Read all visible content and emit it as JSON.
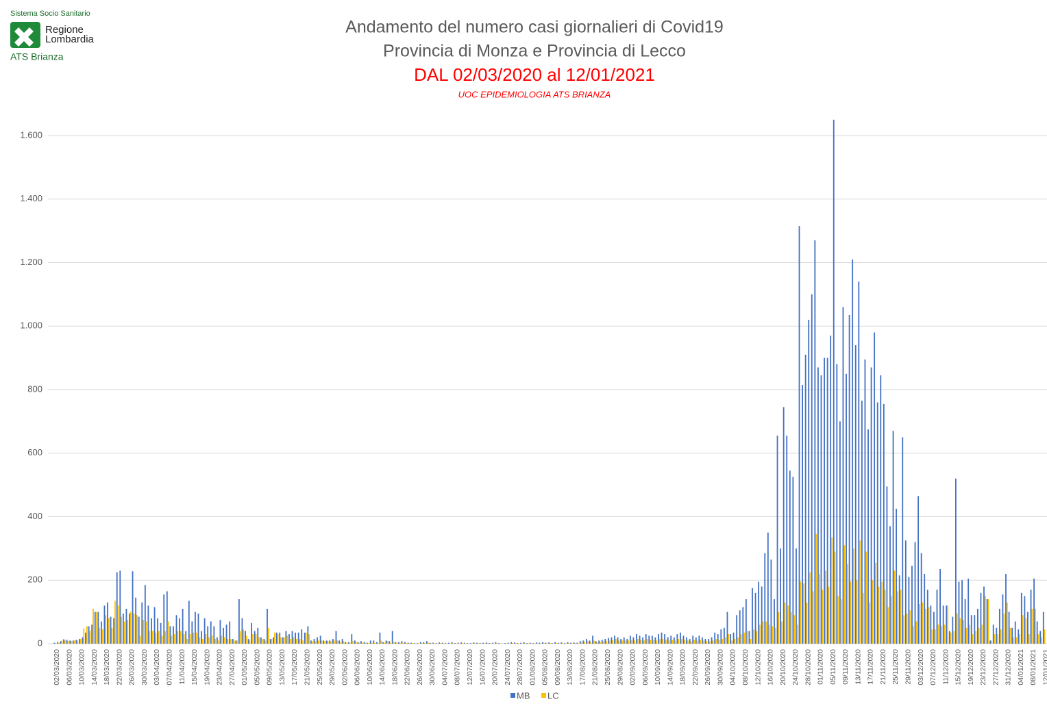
{
  "logo": {
    "system": "Sistema Socio Sanitario",
    "region": [
      "Regione",
      "Lombardia"
    ],
    "agency": "ATS Brianza"
  },
  "chart_data": {
    "type": "bar",
    "title": "Andamento del numero casi giornalieri di Covid19",
    "subtitle": "Provincia di Monza e Provincia di Lecco",
    "annotations": [
      "DAL 02/03/2020 al 12/01/2021",
      "UOC EPIDEMIOLOGIA ATS BRIANZA"
    ],
    "ylim": [
      0,
      1600
    ],
    "yticks": [
      0,
      200,
      400,
      600,
      800,
      {
        "value": 1000,
        "label": "1.000"
      },
      {
        "value": 1200,
        "label": "1.200"
      },
      {
        "value": 1400,
        "label": "1.400"
      },
      {
        "value": 1600,
        "label": "1.600"
      }
    ],
    "grid": true,
    "legend": "bottom",
    "categories": [
      "02/03/2020",
      null,
      null,
      null,
      "06/03/2020",
      null,
      null,
      null,
      "10/03/2020",
      null,
      null,
      null,
      "14/03/2020",
      null,
      null,
      null,
      "18/03/2020",
      null,
      null,
      null,
      "22/03/2020",
      null,
      null,
      null,
      "26/03/2020",
      null,
      null,
      null,
      "30/03/2020",
      null,
      null,
      null,
      "03/04/2020",
      null,
      null,
      null,
      "07/04/2020",
      null,
      null,
      null,
      "11/04/2020",
      null,
      null,
      null,
      "15/04/2020",
      null,
      null,
      null,
      "19/04/2020",
      null,
      null,
      null,
      "23/04/2020",
      null,
      null,
      null,
      "27/04/2020",
      null,
      null,
      null,
      "01/05/2020",
      null,
      null,
      null,
      "05/05/2020",
      null,
      null,
      null,
      "09/05/2020",
      null,
      null,
      null,
      "13/05/2020",
      null,
      null,
      null,
      "17/05/2020",
      null,
      null,
      null,
      "21/05/2020",
      null,
      null,
      null,
      "25/05/2020",
      null,
      null,
      null,
      "29/05/2020",
      null,
      null,
      null,
      "02/06/2020",
      null,
      null,
      null,
      "06/06/2020",
      null,
      null,
      null,
      "10/06/2020",
      null,
      null,
      null,
      "14/06/2020",
      null,
      null,
      null,
      "18/06/2020",
      null,
      null,
      null,
      "22/06/2020",
      null,
      null,
      null,
      "26/06/2020",
      null,
      null,
      null,
      "30/06/2020",
      null,
      null,
      null,
      "04/07/2020",
      null,
      null,
      null,
      "08/07/2020",
      null,
      null,
      null,
      "12/07/2020",
      null,
      null,
      null,
      "16/07/2020",
      null,
      null,
      null,
      "20/07/2020",
      null,
      null,
      null,
      "24/07/2020",
      null,
      null,
      null,
      "28/07/2020",
      null,
      null,
      null,
      "01/08/2020",
      null,
      null,
      null,
      "05/08/2020",
      null,
      null,
      null,
      "09/08/2020",
      null,
      null,
      null,
      "13/08/2020",
      null,
      null,
      null,
      "17/08/2020",
      null,
      null,
      null,
      "21/08/2020",
      null,
      null,
      null,
      "25/08/2020",
      null,
      null,
      null,
      "29/08/2020",
      null,
      null,
      null,
      "02/09/2020",
      null,
      null,
      null,
      "06/09/2020",
      null,
      null,
      null,
      "10/09/2020",
      null,
      null,
      null,
      "14/09/2020",
      null,
      null,
      null,
      "18/09/2020",
      null,
      null,
      null,
      "22/09/2020",
      null,
      null,
      null,
      "26/09/2020",
      null,
      null,
      null,
      "30/09/2020",
      null,
      null,
      null,
      "04/10/2020",
      null,
      null,
      null,
      "08/10/2020",
      null,
      null,
      null,
      "12/10/2020",
      null,
      null,
      null,
      "16/10/2020",
      null,
      null,
      null,
      "20/10/2020",
      null,
      null,
      null,
      "24/10/2020",
      null,
      null,
      null,
      "28/10/2020",
      null,
      null,
      null,
      "01/11/2020",
      null,
      null,
      null,
      "05/11/2020",
      null,
      null,
      null,
      "09/11/2020",
      null,
      null,
      null,
      "13/11/2020",
      null,
      null,
      null,
      "17/11/2020",
      null,
      null,
      null,
      "21/11/2020",
      null,
      null,
      null,
      "25/11/2020",
      null,
      null,
      null,
      "29/11/2020",
      null,
      null,
      null,
      "03/12/2020",
      null,
      null,
      null,
      "07/12/2020",
      null,
      null,
      null,
      "11/12/2020",
      null,
      null,
      null,
      "15/12/2020",
      null,
      null,
      null,
      "19/12/2020",
      null,
      null,
      null,
      "23/12/2020",
      null,
      null,
      null,
      "27/12/2020",
      null,
      null,
      null,
      "31/12/2020",
      null,
      null,
      null,
      "04/01/2021",
      null,
      null,
      null,
      "08/01/2021",
      null,
      null,
      null,
      "12/01/2021"
    ],
    "series": [
      {
        "name": "MB",
        "color": "#4472c4",
        "values": [
          3,
          5,
          8,
          14,
          12,
          10,
          10,
          12,
          15,
          20,
          35,
          55,
          60,
          100,
          100,
          70,
          120,
          130,
          85,
          80,
          225,
          230,
          95,
          110,
          95,
          228,
          145,
          85,
          130,
          185,
          120,
          80,
          115,
          80,
          65,
          155,
          165,
          55,
          55,
          90,
          80,
          110,
          40,
          135,
          70,
          100,
          95,
          40,
          80,
          55,
          70,
          55,
          20,
          75,
          50,
          60,
          70,
          15,
          10,
          140,
          80,
          40,
          15,
          65,
          40,
          50,
          20,
          15,
          110,
          15,
          20,
          35,
          35,
          20,
          40,
          30,
          40,
          35,
          35,
          45,
          35,
          55,
          10,
          15,
          20,
          25,
          10,
          10,
          10,
          15,
          40,
          10,
          15,
          5,
          5,
          30,
          10,
          5,
          8,
          5,
          3,
          10,
          10,
          5,
          35,
          5,
          10,
          8,
          40,
          5,
          5,
          8,
          5,
          3,
          3,
          2,
          2,
          5,
          5,
          8,
          3,
          3,
          2,
          4,
          3,
          2,
          3,
          5,
          2,
          3,
          4,
          3,
          2,
          2,
          4,
          3,
          2,
          3,
          4,
          2,
          3,
          5,
          2,
          1,
          2,
          3,
          5,
          4,
          2,
          3,
          5,
          2,
          3,
          2,
          4,
          3,
          5,
          3,
          4,
          2,
          5,
          3,
          4,
          2,
          5,
          3,
          4,
          3,
          8,
          10,
          15,
          10,
          25,
          8,
          10,
          12,
          15,
          18,
          20,
          25,
          20,
          15,
          20,
          15,
          25,
          20,
          30,
          25,
          20,
          30,
          25,
          25,
          20,
          30,
          35,
          30,
          20,
          25,
          20,
          30,
          35,
          25,
          20,
          15,
          25,
          20,
          25,
          20,
          15,
          15,
          20,
          35,
          30,
          45,
          50,
          100,
          30,
          35,
          90,
          105,
          115,
          140,
          40,
          175,
          160,
          195,
          180,
          285,
          350,
          265,
          140,
          655,
          300,
          745,
          655,
          545,
          525,
          300,
          1315,
          815,
          910,
          1020,
          1100,
          1270,
          870,
          845,
          900,
          900,
          970,
          1650,
          880,
          700,
          1060,
          850,
          1035,
          1210,
          940,
          1140,
          765,
          895,
          675,
          870,
          980,
          760,
          845,
          755,
          495,
          370,
          670,
          425,
          215,
          650,
          325,
          210,
          245,
          320,
          465,
          285,
          220,
          170,
          120,
          100,
          170,
          235,
          120,
          120,
          40,
          85,
          520,
          195,
          200,
          140,
          205,
          90,
          90,
          110,
          160,
          180,
          140,
          10,
          60,
          50,
          110,
          155,
          220,
          100,
          50,
          70,
          45,
          160,
          150,
          100,
          170,
          205,
          70,
          40,
          100
        ]
      },
      {
        "name": "LC",
        "color": "#ffc000",
        "values": [
          2,
          3,
          10,
          10,
          8,
          8,
          10,
          10,
          15,
          48,
          55,
          40,
          110,
          100,
          50,
          45,
          90,
          80,
          50,
          135,
          120,
          85,
          70,
          75,
          100,
          95,
          90,
          25,
          75,
          70,
          40,
          40,
          35,
          40,
          25,
          40,
          70,
          25,
          30,
          40,
          40,
          30,
          15,
          30,
          35,
          35,
          20,
          15,
          30,
          20,
          25,
          15,
          10,
          25,
          20,
          15,
          15,
          10,
          10,
          40,
          45,
          25,
          10,
          30,
          30,
          20,
          15,
          10,
          50,
          15,
          35,
          30,
          20,
          20,
          25,
          15,
          20,
          15,
          15,
          10,
          35,
          30,
          8,
          8,
          10,
          10,
          8,
          8,
          8,
          10,
          10,
          5,
          8,
          3,
          3,
          8,
          5,
          3,
          3,
          3,
          2,
          3,
          3,
          2,
          10,
          3,
          8,
          3,
          5,
          3,
          3,
          3,
          2,
          2,
          2,
          1,
          1,
          2,
          2,
          3,
          2,
          1,
          1,
          2,
          1,
          1,
          1,
          2,
          1,
          1,
          2,
          1,
          1,
          1,
          2,
          1,
          1,
          1,
          2,
          1,
          1,
          2,
          1,
          0,
          1,
          1,
          2,
          2,
          1,
          1,
          2,
          1,
          1,
          1,
          2,
          1,
          2,
          1,
          2,
          1,
          2,
          1,
          2,
          1,
          2,
          1,
          2,
          1,
          5,
          5,
          8,
          5,
          10,
          5,
          5,
          8,
          8,
          10,
          12,
          15,
          10,
          10,
          10,
          10,
          12,
          10,
          15,
          12,
          10,
          15,
          12,
          12,
          10,
          15,
          15,
          12,
          10,
          12,
          10,
          15,
          15,
          12,
          10,
          8,
          12,
          10,
          12,
          10,
          8,
          8,
          10,
          15,
          12,
          15,
          20,
          30,
          10,
          15,
          20,
          30,
          35,
          40,
          15,
          45,
          40,
          60,
          70,
          70,
          60,
          55,
          50,
          100,
          70,
          130,
          120,
          100,
          90,
          60,
          195,
          190,
          130,
          225,
          165,
          345,
          220,
          170,
          230,
          180,
          335,
          290,
          150,
          140,
          310,
          250,
          195,
          300,
          200,
          325,
          160,
          290,
          130,
          200,
          255,
          180,
          195,
          170,
          115,
          150,
          230,
          165,
          170,
          90,
          95,
          105,
          55,
          70,
          125,
          130,
          110,
          115,
          45,
          45,
          60,
          55,
          60,
          120,
          35,
          40,
          95,
          80,
          75,
          50,
          60,
          30,
          40,
          50,
          60,
          150,
          140,
          10,
          30,
          30,
          45,
          95,
          130,
          50,
          20,
          20,
          30,
          90,
          80,
          30,
          110,
          110,
          30,
          20,
          45
        ]
      }
    ]
  }
}
